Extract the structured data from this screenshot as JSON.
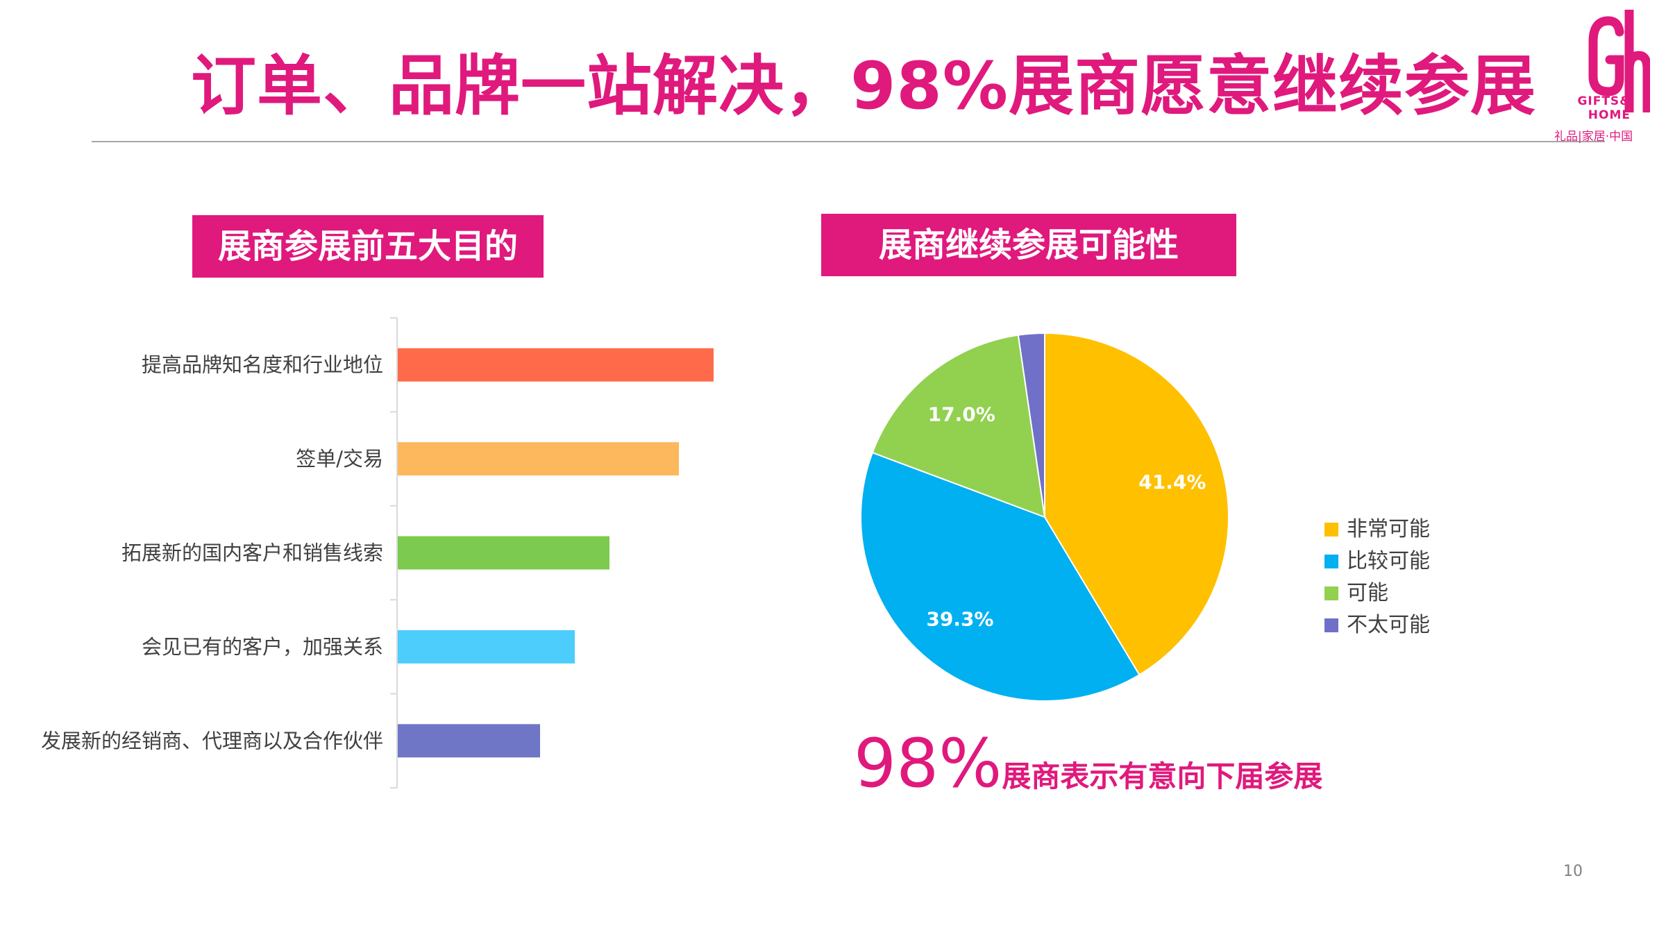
{
  "header": {
    "title": "订单、品牌一站解决，98%展商愿意继续参展"
  },
  "logo": {
    "en_line1": "GIFTS&",
    "en_line2": "HOME",
    "cn": "礼品|家居·中国",
    "color": "#e0197d"
  },
  "sections": {
    "left_tag": "展商参展前五大目的",
    "right_tag": "展商继续参展可能性"
  },
  "chart_data": [
    {
      "type": "bar",
      "orientation": "horizontal",
      "title": "展商参展前五大目的",
      "categories": [
        "提高品牌知名度和行业地位",
        "签单/交易",
        "拓展新的国内客户和销售线索",
        "会见已有的客户，加强关系",
        "发展新的经销商、代理商以及合作伙伴"
      ],
      "values": [
        91,
        81,
        61,
        51,
        41
      ],
      "colors": [
        "#ff6b4a",
        "#fdb85e",
        "#7ccb50",
        "#4ccdfb",
        "#6f76c6"
      ],
      "xlim": [
        0,
        100
      ],
      "xaxis_visible": false,
      "grid": false
    },
    {
      "type": "pie",
      "title": "展商继续参展可能性",
      "categories": [
        "非常可能",
        "比较可能",
        "可能",
        "不太可能"
      ],
      "values": [
        41.4,
        39.3,
        17.0,
        2.3
      ],
      "labels": [
        "41.4%",
        "39.3%",
        "17.0%",
        ""
      ],
      "colors": [
        "#ffc000",
        "#00b0f0",
        "#92d050",
        "#7070c8"
      ],
      "legend": "right"
    }
  ],
  "highlight": {
    "big": "98%",
    "rest": "展商表示有意向下届参展"
  },
  "page_number": "10"
}
